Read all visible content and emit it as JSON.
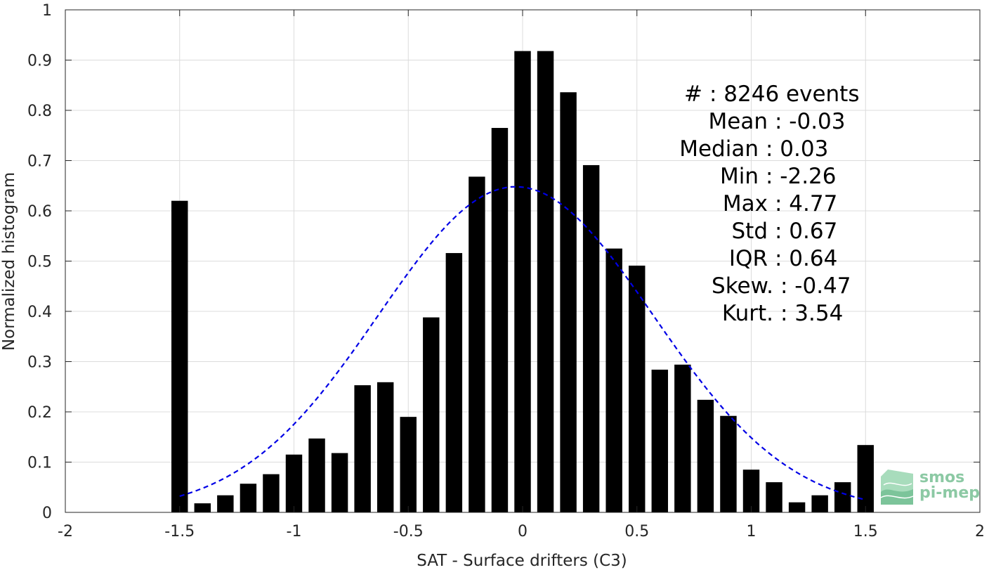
{
  "chart_data": {
    "type": "bar",
    "xlabel": "SAT - Surface drifters (C3)",
    "ylabel": "Normalized histogram",
    "xlim": [
      -2,
      2
    ],
    "ylim": [
      0,
      1
    ],
    "xticks": [
      -2,
      -1.5,
      -1,
      -0.5,
      0,
      0.5,
      1,
      1.5,
      2
    ],
    "yticks": [
      0,
      0.1,
      0.2,
      0.3,
      0.4,
      0.5,
      0.6,
      0.7,
      0.8,
      0.9,
      1
    ],
    "grid": true,
    "bar_color": "#000000",
    "bins": [
      {
        "x": -1.5,
        "value": 0.62
      },
      {
        "x": -1.4,
        "value": 0.018
      },
      {
        "x": -1.3,
        "value": 0.034
      },
      {
        "x": -1.2,
        "value": 0.057
      },
      {
        "x": -1.1,
        "value": 0.076
      },
      {
        "x": -1.0,
        "value": 0.115
      },
      {
        "x": -0.9,
        "value": 0.147
      },
      {
        "x": -0.8,
        "value": 0.118
      },
      {
        "x": -0.7,
        "value": 0.253
      },
      {
        "x": -0.6,
        "value": 0.259
      },
      {
        "x": -0.5,
        "value": 0.19
      },
      {
        "x": -0.4,
        "value": 0.388
      },
      {
        "x": -0.3,
        "value": 0.516
      },
      {
        "x": -0.2,
        "value": 0.668
      },
      {
        "x": -0.1,
        "value": 0.765
      },
      {
        "x": 0.0,
        "value": 0.918
      },
      {
        "x": 0.1,
        "value": 0.918
      },
      {
        "x": 0.2,
        "value": 0.836
      },
      {
        "x": 0.3,
        "value": 0.691
      },
      {
        "x": 0.4,
        "value": 0.525
      },
      {
        "x": 0.5,
        "value": 0.491
      },
      {
        "x": 0.6,
        "value": 0.284
      },
      {
        "x": 0.7,
        "value": 0.294
      },
      {
        "x": 0.8,
        "value": 0.224
      },
      {
        "x": 0.9,
        "value": 0.192
      },
      {
        "x": 1.0,
        "value": 0.085
      },
      {
        "x": 1.1,
        "value": 0.06
      },
      {
        "x": 1.2,
        "value": 0.02
      },
      {
        "x": 1.3,
        "value": 0.034
      },
      {
        "x": 1.4,
        "value": 0.06
      },
      {
        "x": 1.5,
        "value": 0.134
      }
    ],
    "fit_curve": {
      "style": "dashed",
      "color": "#0000e6",
      "mean": -0.03,
      "std": 0.6,
      "peak": 0.648,
      "x_range": [
        -1.5,
        1.5
      ]
    },
    "annotations": [
      "#  : 8246 events",
      "Mean : -0.03",
      "Median : 0.03",
      "Min : -2.26",
      "Max : 4.77",
      "Std : 0.67",
      "IQR : 0.64",
      "Skew. : -0.47",
      "Kurt. : 3.54"
    ]
  },
  "logo": {
    "line1": "smos",
    "line2": "pi-mep",
    "color": "#8cc9a4"
  }
}
